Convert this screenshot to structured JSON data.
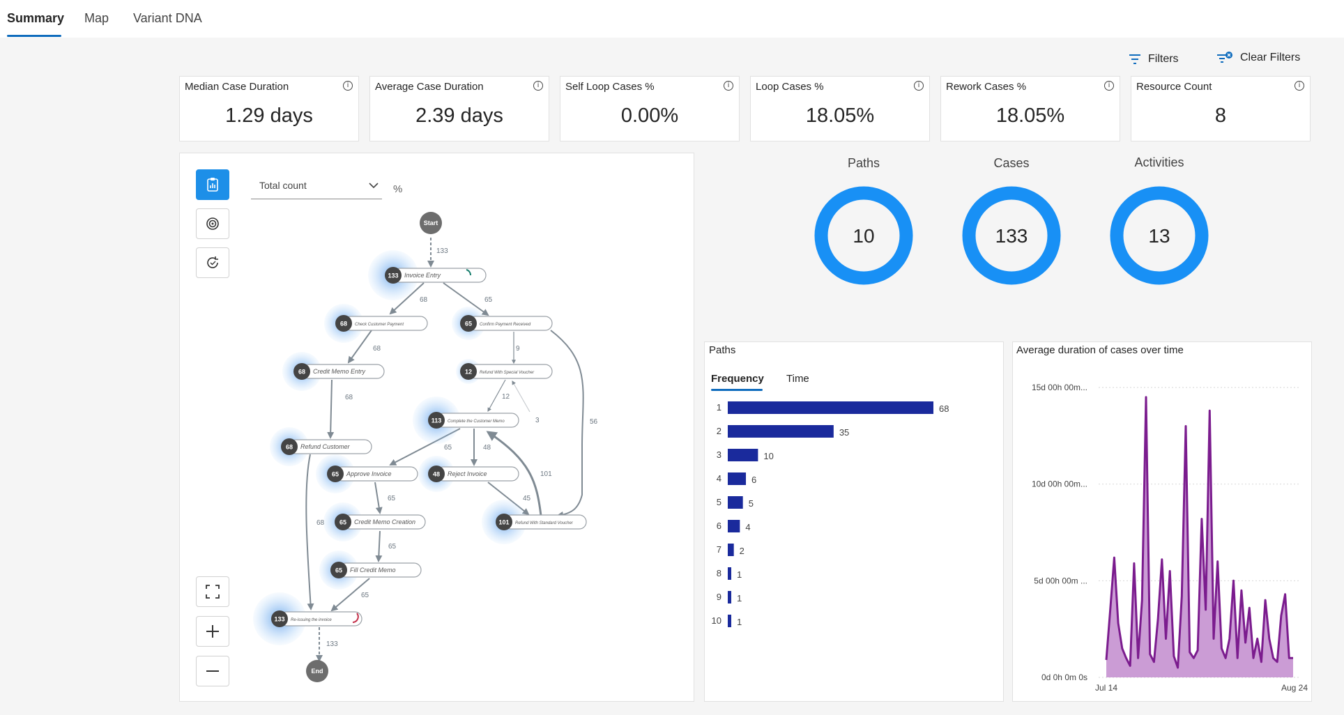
{
  "tabs": [
    {
      "label": "Summary",
      "active": true
    },
    {
      "label": "Map",
      "active": false
    },
    {
      "label": "Variant DNA",
      "active": false
    }
  ],
  "toolbar": {
    "filters_label": "Filters",
    "clear_filters_label": "Clear Filters"
  },
  "kpis": [
    {
      "label": "Median Case Duration",
      "value": "1.29 days"
    },
    {
      "label": "Average Case Duration",
      "value": "2.39 days"
    },
    {
      "label": "Self Loop Cases %",
      "value": "0.00%"
    },
    {
      "label": "Loop Cases %",
      "value": "18.05%"
    },
    {
      "label": "Rework Cases %",
      "value": "18.05%"
    },
    {
      "label": "Resource Count",
      "value": "8"
    }
  ],
  "map_panel": {
    "dropdown_value": "Total count",
    "percent_label": "%",
    "start_label": "Start",
    "end_label": "End",
    "nodes": [
      {
        "count": "133",
        "label": "Invoice Entry"
      },
      {
        "count": "68",
        "label": "Check Customer Payment"
      },
      {
        "count": "65",
        "label": "Confirm Payment Received"
      },
      {
        "count": "68",
        "label": "Credit Memo Entry"
      },
      {
        "count": "12",
        "label": "Refund With Special Voucher"
      },
      {
        "count": "113",
        "label": "Complete the Customer Memo"
      },
      {
        "count": "68",
        "label": "Refund Customer"
      },
      {
        "count": "65",
        "label": "Approve Invoice"
      },
      {
        "count": "48",
        "label": "Reject Invoice"
      },
      {
        "count": "65",
        "label": "Credit Memo Creation"
      },
      {
        "count": "101",
        "label": "Refund With Standard Voucher"
      },
      {
        "count": "65",
        "label": "Fill Credit Memo"
      },
      {
        "count": "133",
        "label": "Re-issuing the invoice"
      }
    ],
    "edges": [
      "133",
      "68",
      "65",
      "68",
      "9",
      "68",
      "12",
      "3",
      "56",
      "65",
      "48",
      "101",
      "65",
      "45",
      "65",
      "68",
      "65",
      "133"
    ]
  },
  "metrics": [
    {
      "title": "Paths",
      "value": "10"
    },
    {
      "title": "Cases",
      "value": "133"
    },
    {
      "title": "Activities",
      "value": "13"
    }
  ],
  "paths_panel": {
    "title": "Paths",
    "tabs": [
      {
        "label": "Frequency",
        "active": true
      },
      {
        "label": "Time",
        "active": false
      }
    ]
  },
  "duration_panel": {
    "title": "Average duration of cases over time"
  },
  "chart_data": [
    {
      "type": "bar",
      "orientation": "horizontal",
      "title": "Paths",
      "categories": [
        "1",
        "2",
        "3",
        "4",
        "5",
        "6",
        "7",
        "8",
        "9",
        "10"
      ],
      "values": [
        68,
        35,
        10,
        6,
        5,
        4,
        2,
        1,
        1,
        1
      ],
      "color": "#1a2a9c"
    },
    {
      "type": "area",
      "title": "Average duration of cases over time",
      "x_tick_labels": [
        "Jul 14",
        "Aug 24"
      ],
      "y_tick_labels": [
        "0d 0h 0m 0s",
        "5d 00h 00m ...",
        "10d 00h 00m...",
        "15d 00h 00m..."
      ],
      "ylim_days": [
        0,
        15
      ],
      "grid": true,
      "color": "#7b1c8e",
      "values_days": [
        0.9,
        3.5,
        6.2,
        2.8,
        1.5,
        1.0,
        0.6,
        5.9,
        1.0,
        4.0,
        14.5,
        1.2,
        0.8,
        3.0,
        6.1,
        2.0,
        5.5,
        1.1,
        0.5,
        4.2,
        13.0,
        1.3,
        1.0,
        1.4,
        8.2,
        3.5,
        13.8,
        2.0,
        6.0,
        1.5,
        1.0,
        2.0,
        5.0,
        1.0,
        4.5,
        1.8,
        3.6,
        1.0,
        2.0,
        0.8,
        4.0,
        2.0,
        1.0,
        0.8,
        3.2,
        4.3,
        1.0,
        1.0
      ]
    }
  ]
}
